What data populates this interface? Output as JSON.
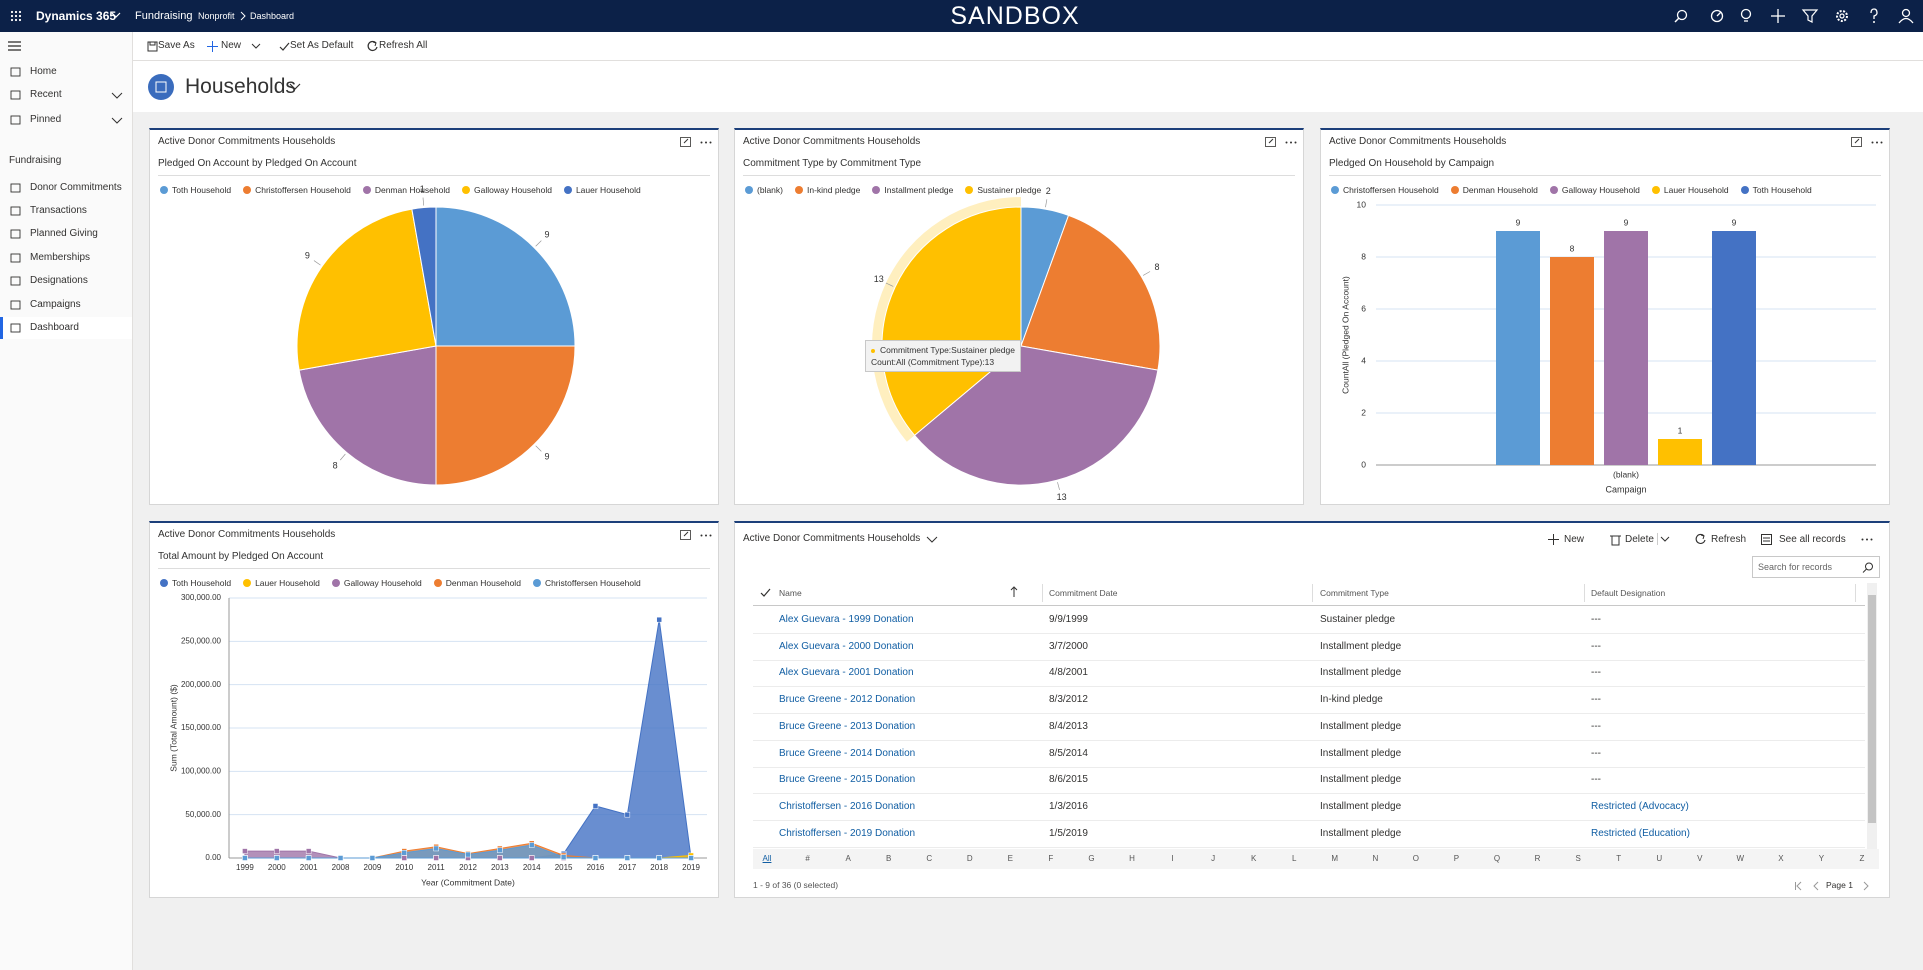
{
  "header": {
    "app": "Dynamics 365",
    "area": "Fundraising",
    "breadcrumb": [
      "Nonprofit",
      "Dashboard"
    ],
    "environment": "SANDBOX"
  },
  "commands": [
    "Save As",
    "New",
    "Set As Default",
    "Refresh All"
  ],
  "nav": {
    "top": [
      "Home",
      "Recent",
      "Pinned"
    ],
    "section": "Fundraising",
    "items": [
      "Donor Commitments",
      "Transactions",
      "Planned Giving",
      "Memberships",
      "Designations",
      "Campaigns",
      "Dashboard"
    ]
  },
  "dashboard": {
    "title": "Households"
  },
  "chart_data": [
    {
      "type": "pie",
      "panel": "Active Donor Commitments Households",
      "title": "Pledged On Account by Pledged On Account",
      "categories": [
        "Toth Household",
        "Christoffersen Household",
        "Denman Household",
        "Galloway Household",
        "Lauer Household"
      ],
      "values": [
        9,
        9,
        8,
        9,
        1
      ],
      "colors": [
        "#5b9bd5",
        "#ed7d31",
        "#a074a8",
        "#ffc000",
        "#4472c4"
      ]
    },
    {
      "type": "pie",
      "panel": "Active Donor Commitments Households",
      "title": "Commitment Type by Commitment Type",
      "categories": [
        "(blank)",
        "In-kind pledge",
        "Installment pledge",
        "Sustainer pledge"
      ],
      "values": [
        2,
        8,
        13,
        13
      ],
      "colors": [
        "#5b9bd5",
        "#ed7d31",
        "#a074a8",
        "#ffc000"
      ],
      "tooltip": [
        "Commitment Type:Sustainer pledge",
        "Count:All (Commitment Type):13"
      ]
    },
    {
      "type": "bar",
      "panel": "Active Donor Commitments Households",
      "title": "Pledged On Household by Campaign",
      "categories": [
        "(blank)"
      ],
      "series": [
        {
          "name": "Christoffersen Household",
          "color": "#5b9bd5",
          "values": [
            9
          ]
        },
        {
          "name": "Denman Household",
          "color": "#ed7d31",
          "values": [
            8
          ]
        },
        {
          "name": "Galloway Household",
          "color": "#a074a8",
          "values": [
            9
          ]
        },
        {
          "name": "Lauer Household",
          "color": "#ffc000",
          "values": [
            1
          ]
        },
        {
          "name": "Toth Household",
          "color": "#4472c4",
          "values": [
            9
          ]
        }
      ],
      "ylim": [
        0,
        10
      ],
      "yticks": [
        0,
        2,
        4,
        6,
        8,
        10
      ],
      "grid": true,
      "ylabel": "CountAll (Pledged On Account)",
      "xlabel": "Campaign"
    },
    {
      "type": "area",
      "panel": "Active Donor Commitments Households",
      "title": "Total Amount by Pledged On Account",
      "categories": [
        "1999",
        "2000",
        "2001",
        "2008",
        "2009",
        "2010",
        "2011",
        "2012",
        "2013",
        "2014",
        "2015",
        "2016",
        "2017",
        "2018",
        "2019"
      ],
      "series": [
        {
          "name": "Toth Household",
          "color": "#4472c4",
          "values": [
            0,
            0,
            0,
            0,
            0,
            0,
            0,
            0,
            0,
            0,
            5000,
            60000,
            50000,
            275000,
            0
          ]
        },
        {
          "name": "Lauer Household",
          "color": "#ffc000",
          "values": [
            0,
            0,
            0,
            0,
            0,
            0,
            0,
            0,
            0,
            0,
            0,
            0,
            0,
            0,
            3000
          ]
        },
        {
          "name": "Galloway Household",
          "color": "#a074a8",
          "values": [
            8000,
            8000,
            8000,
            0,
            0,
            0,
            0,
            0,
            0,
            0,
            0,
            0,
            0,
            0,
            0
          ]
        },
        {
          "name": "Denman Household",
          "color": "#ed7d31",
          "values": [
            0,
            0,
            0,
            0,
            0,
            8000,
            13000,
            5000,
            11000,
            17000,
            3000,
            0,
            0,
            0,
            0
          ]
        },
        {
          "name": "Christoffersen Household",
          "color": "#5b9bd5",
          "values": [
            0,
            0,
            0,
            0,
            0,
            6000,
            11000,
            4000,
            9000,
            15000,
            1000,
            0,
            0,
            0,
            0
          ]
        }
      ],
      "ylim": [
        0,
        300000
      ],
      "yticks": [
        {
          "value": 0,
          "label": "0.00"
        },
        {
          "value": 50000,
          "label": "50,000.00"
        },
        {
          "value": 100000,
          "label": "100,000.00"
        },
        {
          "value": 150000,
          "label": "150,000.00"
        },
        {
          "value": 200000,
          "label": "200,000.00"
        },
        {
          "value": 250000,
          "label": "250,000.00"
        },
        {
          "value": 300000,
          "label": "300,000.00"
        }
      ],
      "grid": true,
      "ylabel": "Sum (Total Amount) ($)",
      "xlabel": "Year (Commitment Date)"
    }
  ],
  "grid": {
    "title": "Active Donor Commitments Households",
    "commands": [
      "New",
      "Delete",
      "Refresh",
      "See all records"
    ],
    "search": "Search for records",
    "columns": [
      "Name",
      "Commitment Date",
      "Commitment Type",
      "Default Designation"
    ],
    "rows": [
      [
        "Alex Guevara - 1999 Donation",
        "9/9/1999",
        "Sustainer pledge",
        "---"
      ],
      [
        "Alex Guevara - 2000 Donation",
        "3/7/2000",
        "Installment pledge",
        "---"
      ],
      [
        "Alex Guevara - 2001 Donation",
        "4/8/2001",
        "Installment pledge",
        "---"
      ],
      [
        "Bruce Greene - 2012 Donation",
        "8/3/2012",
        "In-kind pledge",
        "---"
      ],
      [
        "Bruce Greene - 2013 Donation",
        "8/4/2013",
        "Installment pledge",
        "---"
      ],
      [
        "Bruce Greene - 2014 Donation",
        "8/5/2014",
        "Installment pledge",
        "---"
      ],
      [
        "Bruce Greene - 2015 Donation",
        "8/6/2015",
        "Installment pledge",
        "---"
      ],
      [
        "Christoffersen - 2016 Donation",
        "1/3/2016",
        "Installment pledge",
        "Restricted (Advocacy)"
      ],
      [
        "Christoffersen - 2019 Donation",
        "1/5/2019",
        "Installment pledge",
        "Restricted (Education)"
      ]
    ],
    "jump": [
      "All",
      "#",
      "A",
      "B",
      "C",
      "D",
      "E",
      "F",
      "G",
      "H",
      "I",
      "J",
      "K",
      "L",
      "M",
      "N",
      "O",
      "P",
      "Q",
      "R",
      "S",
      "T",
      "U",
      "V",
      "W",
      "X",
      "Y",
      "Z"
    ],
    "footer": "1 - 9 of 36 (0 selected)",
    "page": "Page 1"
  }
}
